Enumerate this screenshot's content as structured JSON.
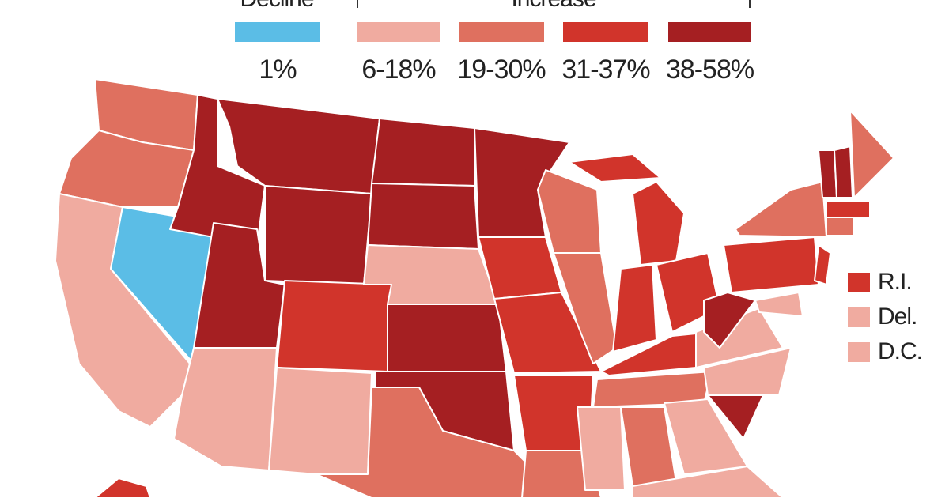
{
  "legend": {
    "decline_title": "Decline",
    "increase_title": "Increase",
    "items": [
      {
        "label": "1%",
        "color": "#5bbde6"
      },
      {
        "label": "6-18%",
        "color": "#f0aba0"
      },
      {
        "label": "19-30%",
        "color": "#df705f"
      },
      {
        "label": "31-37%",
        "color": "#d1342b"
      },
      {
        "label": "38-58%",
        "color": "#a51f22"
      }
    ]
  },
  "small_states": [
    {
      "label": "R.I.",
      "color": "#d1342b"
    },
    {
      "label": "Del.",
      "color": "#f0aba0"
    },
    {
      "label": "D.C.",
      "color": "#f0aba0"
    }
  ]
}
